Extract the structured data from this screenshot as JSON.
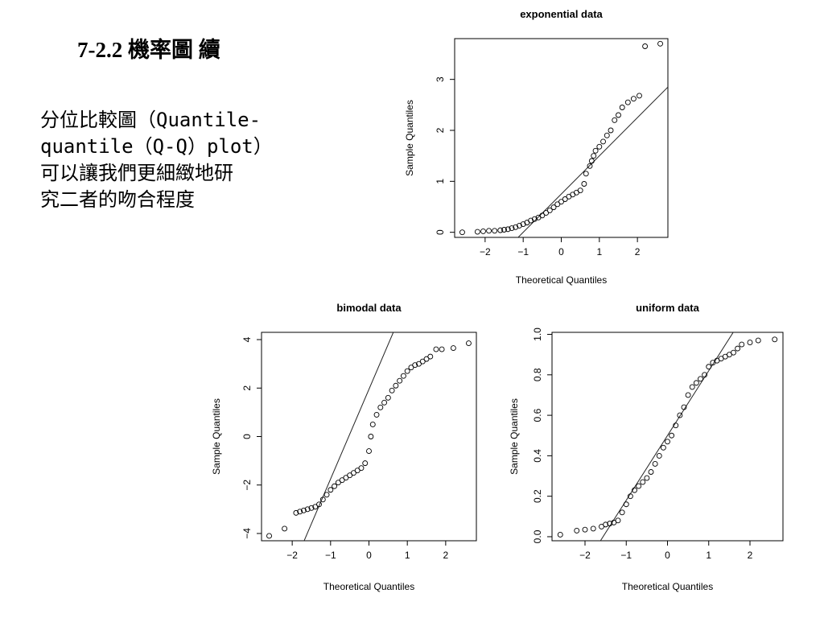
{
  "slide": {
    "title": "7-2.2 機率圖 續",
    "body_lines": [
      "分位比較圖（Quantile-",
      "quantile（Q-Q）plot）",
      "可以讓我們更細緻地研",
      "究二者的吻合程度"
    ]
  },
  "chart_data": [
    {
      "type": "scatter",
      "title": "exponential data",
      "xlabel": "Theoretical Quantiles",
      "ylabel": "Sample Quantiles",
      "xlim": [
        -2.8,
        2.8
      ],
      "ylim": [
        -0.1,
        3.8
      ],
      "xticks": [
        -2,
        -1,
        0,
        1,
        2
      ],
      "yticks": [
        0,
        1,
        2,
        3
      ],
      "ref_line": {
        "slope": 0.75,
        "intercept": 0.75
      },
      "points": [
        [
          -2.6,
          0.0
        ],
        [
          -2.2,
          0.01
        ],
        [
          -2.05,
          0.02
        ],
        [
          -1.9,
          0.03
        ],
        [
          -1.75,
          0.03
        ],
        [
          -1.6,
          0.04
        ],
        [
          -1.5,
          0.05
        ],
        [
          -1.4,
          0.06
        ],
        [
          -1.3,
          0.08
        ],
        [
          -1.2,
          0.1
        ],
        [
          -1.1,
          0.13
        ],
        [
          -1.0,
          0.16
        ],
        [
          -0.9,
          0.19
        ],
        [
          -0.8,
          0.23
        ],
        [
          -0.7,
          0.26
        ],
        [
          -0.6,
          0.29
        ],
        [
          -0.5,
          0.33
        ],
        [
          -0.4,
          0.38
        ],
        [
          -0.3,
          0.43
        ],
        [
          -0.2,
          0.49
        ],
        [
          -0.1,
          0.55
        ],
        [
          0.0,
          0.6
        ],
        [
          0.1,
          0.65
        ],
        [
          0.2,
          0.7
        ],
        [
          0.3,
          0.74
        ],
        [
          0.4,
          0.78
        ],
        [
          0.5,
          0.82
        ],
        [
          0.6,
          0.95
        ],
        [
          0.65,
          1.15
        ],
        [
          0.75,
          1.3
        ],
        [
          0.8,
          1.4
        ],
        [
          0.85,
          1.5
        ],
        [
          0.9,
          1.6
        ],
        [
          1.0,
          1.68
        ],
        [
          1.1,
          1.78
        ],
        [
          1.2,
          1.9
        ],
        [
          1.3,
          2.0
        ],
        [
          1.4,
          2.2
        ],
        [
          1.5,
          2.3
        ],
        [
          1.6,
          2.45
        ],
        [
          1.75,
          2.55
        ],
        [
          1.9,
          2.62
        ],
        [
          2.05,
          2.68
        ],
        [
          2.2,
          3.65
        ],
        [
          2.6,
          3.7
        ]
      ]
    },
    {
      "type": "scatter",
      "title": "bimodal data",
      "xlabel": "Theoretical Quantiles",
      "ylabel": "Sample Quantiles",
      "xlim": [
        -2.8,
        2.8
      ],
      "ylim": [
        -4.3,
        4.3
      ],
      "xticks": [
        -2,
        -1,
        0,
        1,
        2
      ],
      "yticks": [
        -4,
        -2,
        0,
        2,
        4
      ],
      "ref_line": {
        "slope": 3.7,
        "intercept": 1.95
      },
      "points": [
        [
          -2.6,
          -4.1
        ],
        [
          -2.2,
          -3.8
        ],
        [
          -1.9,
          -3.15
        ],
        [
          -1.8,
          -3.1
        ],
        [
          -1.7,
          -3.05
        ],
        [
          -1.6,
          -3.0
        ],
        [
          -1.5,
          -2.95
        ],
        [
          -1.4,
          -2.9
        ],
        [
          -1.3,
          -2.8
        ],
        [
          -1.2,
          -2.6
        ],
        [
          -1.1,
          -2.4
        ],
        [
          -1.0,
          -2.2
        ],
        [
          -0.9,
          -2.05
        ],
        [
          -0.8,
          -1.9
        ],
        [
          -0.7,
          -1.8
        ],
        [
          -0.6,
          -1.7
        ],
        [
          -0.5,
          -1.6
        ],
        [
          -0.4,
          -1.5
        ],
        [
          -0.3,
          -1.4
        ],
        [
          -0.2,
          -1.3
        ],
        [
          -0.1,
          -1.1
        ],
        [
          0.0,
          -0.6
        ],
        [
          0.05,
          0.0
        ],
        [
          0.1,
          0.5
        ],
        [
          0.2,
          0.9
        ],
        [
          0.3,
          1.2
        ],
        [
          0.4,
          1.4
        ],
        [
          0.5,
          1.6
        ],
        [
          0.6,
          1.9
        ],
        [
          0.7,
          2.1
        ],
        [
          0.8,
          2.3
        ],
        [
          0.9,
          2.5
        ],
        [
          1.0,
          2.7
        ],
        [
          1.1,
          2.85
        ],
        [
          1.2,
          2.95
        ],
        [
          1.3,
          3.0
        ],
        [
          1.4,
          3.1
        ],
        [
          1.5,
          3.2
        ],
        [
          1.6,
          3.3
        ],
        [
          1.75,
          3.6
        ],
        [
          1.9,
          3.6
        ],
        [
          2.2,
          3.65
        ],
        [
          2.6,
          3.85
        ]
      ]
    },
    {
      "type": "scatter",
      "title": "uniform data",
      "xlabel": "Theoretical Quantiles",
      "ylabel": "Sample Quantiles",
      "xlim": [
        -2.8,
        2.8
      ],
      "ylim": [
        -0.02,
        1.01
      ],
      "xticks": [
        -2,
        -1,
        0,
        1,
        2
      ],
      "yticks": [
        0.0,
        0.2,
        0.4,
        0.6,
        0.8,
        1.0
      ],
      "ref_line": {
        "slope": 0.32,
        "intercept": 0.5
      },
      "points": [
        [
          -2.6,
          0.01
        ],
        [
          -2.2,
          0.03
        ],
        [
          -2.0,
          0.035
        ],
        [
          -1.8,
          0.04
        ],
        [
          -1.6,
          0.05
        ],
        [
          -1.5,
          0.06
        ],
        [
          -1.4,
          0.065
        ],
        [
          -1.3,
          0.07
        ],
        [
          -1.2,
          0.08
        ],
        [
          -1.1,
          0.12
        ],
        [
          -1.0,
          0.16
        ],
        [
          -0.9,
          0.2
        ],
        [
          -0.8,
          0.23
        ],
        [
          -0.7,
          0.25
        ],
        [
          -0.6,
          0.27
        ],
        [
          -0.5,
          0.29
        ],
        [
          -0.4,
          0.32
        ],
        [
          -0.3,
          0.36
        ],
        [
          -0.2,
          0.4
        ],
        [
          -0.1,
          0.44
        ],
        [
          0.0,
          0.47
        ],
        [
          0.1,
          0.5
        ],
        [
          0.2,
          0.55
        ],
        [
          0.3,
          0.6
        ],
        [
          0.4,
          0.64
        ],
        [
          0.5,
          0.7
        ],
        [
          0.6,
          0.74
        ],
        [
          0.7,
          0.76
        ],
        [
          0.8,
          0.78
        ],
        [
          0.9,
          0.8
        ],
        [
          1.0,
          0.84
        ],
        [
          1.1,
          0.86
        ],
        [
          1.2,
          0.87
        ],
        [
          1.3,
          0.88
        ],
        [
          1.4,
          0.89
        ],
        [
          1.5,
          0.9
        ],
        [
          1.6,
          0.91
        ],
        [
          1.7,
          0.93
        ],
        [
          1.8,
          0.95
        ],
        [
          2.0,
          0.96
        ],
        [
          2.2,
          0.97
        ],
        [
          2.6,
          0.975
        ]
      ]
    }
  ]
}
